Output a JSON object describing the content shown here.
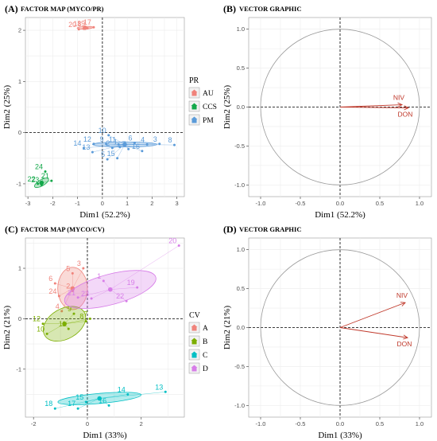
{
  "colors": {
    "AU": "#f0837b",
    "CCS": "#13a84a",
    "PM": "#5b9bd9",
    "A": "#f0837b",
    "B": "#7cae00",
    "C": "#00bfc4",
    "D": "#d77de8",
    "vector": "#c0392b"
  },
  "chart_data": [
    {
      "id": "A",
      "type": "scatter",
      "letter": "(A)",
      "title": "FACTOR MAP (MYCO/PR)",
      "xlabel": "Dim1 (52.2%)",
      "ylabel": "Dim2 (25%)",
      "xlim": [
        -3.1,
        3.3
      ],
      "ylim": [
        -1.25,
        2.25
      ],
      "xticks": [
        -3,
        -2,
        -1,
        0,
        1,
        2,
        3
      ],
      "yticks": [
        -1,
        0,
        1,
        2
      ],
      "grid": true,
      "legend": {
        "title": "PR",
        "placement": "right"
      },
      "groups": [
        {
          "name": "AU",
          "color_key": "AU",
          "center": [
            -0.7,
            2.05
          ],
          "ellipse": {
            "rx": 0.32,
            "ry": 0.025,
            "angle": 3
          },
          "points": [
            {
              "label": "20",
              "x": -0.95,
              "y": 2.02
            },
            {
              "label": "17",
              "x": -0.35,
              "y": 2.06
            },
            {
              "label": "18",
              "x": -0.75,
              "y": 2.03
            },
            {
              "label": "19",
              "x": -0.6,
              "y": 2.04
            }
          ]
        },
        {
          "name": "CCS",
          "color_key": "CCS",
          "center": [
            -2.45,
            -0.98
          ],
          "ellipse": {
            "rx": 0.32,
            "ry": 0.06,
            "angle": 30
          },
          "points": [
            {
              "label": "24",
              "x": -2.3,
              "y": -0.76
            },
            {
              "label": "22",
              "x": -2.6,
              "y": -1.0
            },
            {
              "label": "21",
              "x": -2.05,
              "y": -0.94
            },
            {
              "label": "23",
              "x": -2.45,
              "y": -1.02
            }
          ]
        },
        {
          "name": "PM",
          "color_key": "PM",
          "center": [
            0.9,
            -0.23
          ],
          "ellipse": {
            "rx": 1.3,
            "ry": 0.05,
            "angle": 0
          },
          "points": [
            {
              "label": "10",
              "x": 0.25,
              "y": -0.05
            },
            {
              "label": "12",
              "x": -0.35,
              "y": -0.22
            },
            {
              "label": "9",
              "x": 0.15,
              "y": -0.22
            },
            {
              "label": "11",
              "x": 0.65,
              "y": -0.23
            },
            {
              "label": "6",
              "x": 1.3,
              "y": -0.2
            },
            {
              "label": "4",
              "x": 1.8,
              "y": -0.23
            },
            {
              "label": "3",
              "x": 2.3,
              "y": -0.22
            },
            {
              "label": "14",
              "x": -0.75,
              "y": -0.3
            },
            {
              "label": "13",
              "x": -0.4,
              "y": -0.38
            },
            {
              "label": "2",
              "x": 0.4,
              "y": -0.3
            },
            {
              "label": "1",
              "x": 0.7,
              "y": -0.28
            },
            {
              "label": "7",
              "x": 1.05,
              "y": -0.32
            },
            {
              "label": "16",
              "x": 1.6,
              "y": -0.36
            },
            {
              "label": "8",
              "x": 2.9,
              "y": -0.24
            },
            {
              "label": "5",
              "x": 0.2,
              "y": -0.52
            },
            {
              "label": "15",
              "x": 0.6,
              "y": -0.5
            }
          ]
        }
      ],
      "legend_entries": [
        "AU",
        "CCS",
        "PM"
      ]
    },
    {
      "id": "B",
      "type": "vector",
      "letter": "(B)",
      "title": "VECTOR GRAPHIC",
      "xlabel": "Dim1 (52.2%)",
      "ylabel": "Dim2 (25%)",
      "xlim": [
        -1.15,
        1.15
      ],
      "ylim": [
        -1.15,
        1.15
      ],
      "xticks": [
        -1.0,
        -0.5,
        0.0,
        0.5,
        1.0
      ],
      "yticks": [
        -1.0,
        -0.5,
        0.0,
        0.5,
        1.0
      ],
      "grid": true,
      "vectors": [
        {
          "label": "NIV",
          "x": 0.78,
          "y": 0.03
        },
        {
          "label": "DON",
          "x": 0.86,
          "y": -0.01
        }
      ]
    },
    {
      "id": "C",
      "type": "scatter",
      "letter": "(C)",
      "title": "FACTOR MAP (MYCO/CV)",
      "xlabel": "Dim1 (33%)",
      "ylabel": "Dim2 (21%)",
      "xlim": [
        -2.3,
        3.6
      ],
      "ylim": [
        -1.95,
        1.6
      ],
      "xticks": [
        -2,
        0,
        2
      ],
      "yticks": [
        -1,
        0,
        1
      ],
      "grid": true,
      "legend": {
        "title": "CV",
        "placement": "right"
      },
      "groups": [
        {
          "name": "A",
          "color_key": "A",
          "center": [
            -0.55,
            0.6
          ],
          "ellipse": {
            "rx": 0.55,
            "ry": 0.42,
            "angle": 0
          },
          "points": [
            {
              "label": "3",
              "x": -0.15,
              "y": 1.0
            },
            {
              "label": "5",
              "x": -0.55,
              "y": 0.9
            },
            {
              "label": "6",
              "x": -1.2,
              "y": 0.7
            },
            {
              "label": "2",
              "x": -0.55,
              "y": 0.55
            },
            {
              "label": "24",
              "x": -1.05,
              "y": 0.45
            },
            {
              "label": "4",
              "x": -0.95,
              "y": 0.15
            }
          ]
        },
        {
          "name": "B",
          "color_key": "B",
          "center": [
            -0.85,
            -0.1
          ],
          "ellipse": {
            "rx": 0.85,
            "ry": 0.3,
            "angle": 30
          },
          "points": [
            {
              "label": "9",
              "x": -0.5,
              "y": 0.1
            },
            {
              "label": "7",
              "x": 0.1,
              "y": 0.0
            },
            {
              "label": "12",
              "x": -1.65,
              "y": -0.1
            },
            {
              "label": "8",
              "x": -0.05,
              "y": -0.05
            },
            {
              "label": "10",
              "x": -1.5,
              "y": -0.3
            },
            {
              "label": "11",
              "x": -0.7,
              "y": -0.2
            }
          ]
        },
        {
          "name": "C",
          "color_key": "C",
          "center": [
            0.45,
            -1.58
          ],
          "ellipse": {
            "rx": 1.55,
            "ry": 0.1,
            "angle": 5
          },
          "points": [
            {
              "label": "14",
              "x": 1.5,
              "y": -1.5
            },
            {
              "label": "13",
              "x": 2.9,
              "y": -1.45
            },
            {
              "label": "15",
              "x": -0.05,
              "y": -1.65
            },
            {
              "label": "18",
              "x": -1.2,
              "y": -1.78
            },
            {
              "label": "17",
              "x": -0.35,
              "y": -1.78
            },
            {
              "label": "16",
              "x": 0.8,
              "y": -1.72
            }
          ]
        },
        {
          "name": "D",
          "color_key": "D",
          "center": [
            0.85,
            0.58
          ],
          "ellipse": {
            "rx": 1.75,
            "ry": 0.3,
            "angle": 15
          },
          "points": [
            {
              "label": "20",
              "x": 3.4,
              "y": 1.45
            },
            {
              "label": "1",
              "x": 0.6,
              "y": 0.75
            },
            {
              "label": "19",
              "x": 1.85,
              "y": 0.62
            },
            {
              "label": "21",
              "x": -0.35,
              "y": 0.42
            },
            {
              "label": "23",
              "x": 0.15,
              "y": 0.4
            },
            {
              "label": "22",
              "x": 1.45,
              "y": 0.35
            }
          ]
        }
      ],
      "legend_entries": [
        "A",
        "B",
        "C",
        "D"
      ]
    },
    {
      "id": "D",
      "type": "vector",
      "letter": "(D)",
      "title": "VECTOR GRAPHIC",
      "xlabel": "Dim1 (33%)",
      "ylabel": "Dim2 (21%)",
      "xlim": [
        -1.15,
        1.15
      ],
      "ylim": [
        -1.15,
        1.15
      ],
      "xticks": [
        -1.0,
        -0.5,
        0.0,
        0.5,
        1.0
      ],
      "yticks": [
        -1.0,
        -0.5,
        0.0,
        0.5,
        1.0
      ],
      "grid": true,
      "vectors": [
        {
          "label": "NIV",
          "x": 0.82,
          "y": 0.32
        },
        {
          "label": "DON",
          "x": 0.85,
          "y": -0.13
        }
      ]
    }
  ]
}
